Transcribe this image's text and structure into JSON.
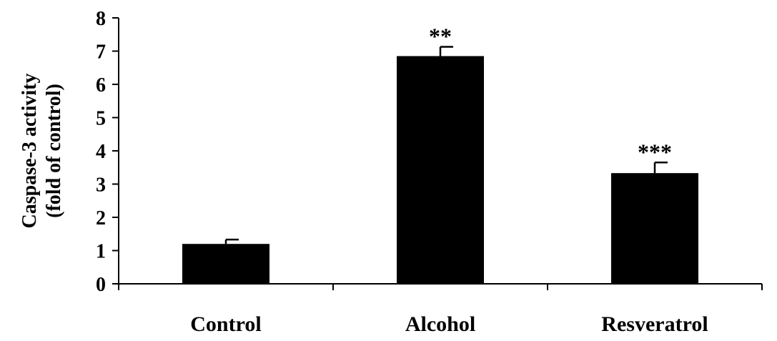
{
  "chart_data": {
    "type": "bar",
    "title": "",
    "xlabel": "",
    "ylabel_lines": [
      "Caspase-3 activity",
      "(fold of control)"
    ],
    "categories": [
      "Control",
      "Alcohol",
      "Resveratrol"
    ],
    "values": [
      1.2,
      6.85,
      3.33
    ],
    "errors": [
      0.13,
      0.28,
      0.32
    ],
    "significance": [
      "",
      "**",
      "***"
    ],
    "ylim": [
      0,
      8
    ],
    "yticks": [
      0,
      1,
      2,
      3,
      4,
      5,
      6,
      7,
      8
    ],
    "grid": false,
    "legend": "none",
    "bar_color": "#000000"
  }
}
